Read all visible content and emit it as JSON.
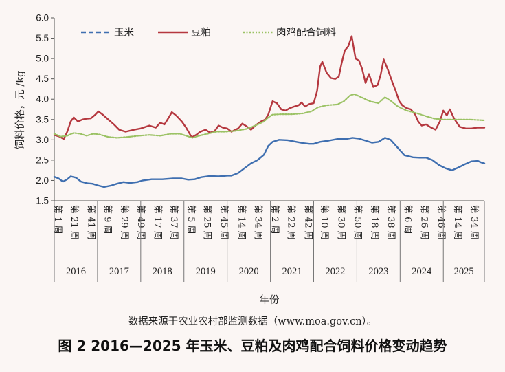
{
  "caption": "图 2 2016—2025 年玉米、豆粕及肉鸡配合饲料价格变动趋势",
  "source_note": "数据来源于农业农村部监测数据（www.moa.gov.cn）。",
  "colors": {
    "corn": "#3f6fb0",
    "soymeal": "#b5383f",
    "feed": "#9bc264"
  },
  "chart_data": {
    "type": "line",
    "title": "",
    "xlabel": "年份",
    "ylabel": "饲料价格，元 /kg",
    "ylim": [
      1.5,
      6.0
    ],
    "yticks": [
      "1.5",
      "2.0",
      "2.5",
      "3.0",
      "3.5",
      "4.0",
      "4.5",
      "5.0",
      "5.5",
      "6.0"
    ],
    "grid": false,
    "legend_position": "top",
    "years": [
      "2016",
      "2017",
      "2018",
      "2019",
      "2020",
      "2021",
      "2022",
      "2023",
      "2024",
      "2025"
    ],
    "week_ticks": [
      "第 1 周",
      "第 21 周",
      "第 41 周",
      "第 9 周",
      "第 29 周",
      "第 49 周",
      "第 17 周",
      "第 37 周",
      "第 5 周",
      "第 25 周",
      "第 45 周",
      "第 14 周",
      "第 34 周",
      "第 2 周",
      "第 22 周",
      "第 42 周",
      "第 10 周",
      "第 30 周",
      "第 50 周",
      "第 18 周",
      "第 38 周",
      "第 6 周",
      "第 26 周",
      "第 46 周",
      "第 14 周",
      "第 34 周"
    ],
    "week_tick_positions": [
      2016.0,
      2016.38,
      2016.77,
      2017.15,
      2017.54,
      2017.92,
      2018.31,
      2018.69,
      2019.08,
      2019.46,
      2019.85,
      2020.25,
      2020.63,
      2021.02,
      2021.4,
      2021.79,
      2022.17,
      2022.56,
      2022.94,
      2023.33,
      2023.71,
      2024.1,
      2024.48,
      2024.87,
      2025.25,
      2025.63
    ],
    "x_range": [
      2016.0,
      2025.95
    ],
    "series": [
      {
        "name": "玉米",
        "style": "dashed",
        "points": [
          [
            2016.0,
            2.09
          ],
          [
            2016.1,
            2.05
          ],
          [
            2016.2,
            1.97
          ],
          [
            2016.3,
            2.03
          ],
          [
            2016.38,
            2.1
          ],
          [
            2016.5,
            2.07
          ],
          [
            2016.62,
            1.97
          ],
          [
            2016.77,
            1.93
          ],
          [
            2016.88,
            1.92
          ],
          [
            2017.0,
            1.88
          ],
          [
            2017.15,
            1.84
          ],
          [
            2017.3,
            1.87
          ],
          [
            2017.45,
            1.92
          ],
          [
            2017.6,
            1.96
          ],
          [
            2017.75,
            1.94
          ],
          [
            2017.92,
            1.96
          ],
          [
            2018.05,
            2.0
          ],
          [
            2018.25,
            2.03
          ],
          [
            2018.5,
            2.03
          ],
          [
            2018.75,
            2.05
          ],
          [
            2018.95,
            2.05
          ],
          [
            2019.1,
            2.02
          ],
          [
            2019.25,
            2.03
          ],
          [
            2019.4,
            2.08
          ],
          [
            2019.6,
            2.11
          ],
          [
            2019.8,
            2.1
          ],
          [
            2020.0,
            2.12
          ],
          [
            2020.1,
            2.12
          ],
          [
            2020.25,
            2.18
          ],
          [
            2020.4,
            2.3
          ],
          [
            2020.55,
            2.42
          ],
          [
            2020.7,
            2.5
          ],
          [
            2020.85,
            2.63
          ],
          [
            2020.95,
            2.85
          ],
          [
            2021.05,
            2.95
          ],
          [
            2021.2,
            3.0
          ],
          [
            2021.4,
            2.99
          ],
          [
            2021.6,
            2.95
          ],
          [
            2021.75,
            2.92
          ],
          [
            2021.9,
            2.9
          ],
          [
            2022.0,
            2.9
          ],
          [
            2022.15,
            2.95
          ],
          [
            2022.35,
            2.98
          ],
          [
            2022.55,
            3.02
          ],
          [
            2022.75,
            3.02
          ],
          [
            2022.9,
            3.05
          ],
          [
            2023.05,
            3.03
          ],
          [
            2023.2,
            2.98
          ],
          [
            2023.35,
            2.93
          ],
          [
            2023.5,
            2.95
          ],
          [
            2023.65,
            3.05
          ],
          [
            2023.78,
            3.0
          ],
          [
            2023.95,
            2.8
          ],
          [
            2024.1,
            2.62
          ],
          [
            2024.3,
            2.57
          ],
          [
            2024.45,
            2.56
          ],
          [
            2024.6,
            2.56
          ],
          [
            2024.75,
            2.5
          ],
          [
            2024.9,
            2.38
          ],
          [
            2025.05,
            2.3
          ],
          [
            2025.2,
            2.25
          ],
          [
            2025.35,
            2.32
          ],
          [
            2025.5,
            2.4
          ],
          [
            2025.65,
            2.47
          ],
          [
            2025.8,
            2.48
          ],
          [
            2025.88,
            2.44
          ],
          [
            2025.95,
            2.42
          ]
        ]
      },
      {
        "name": "豆粕",
        "style": "solid",
        "points": [
          [
            2016.0,
            3.12
          ],
          [
            2016.12,
            3.08
          ],
          [
            2016.22,
            3.02
          ],
          [
            2016.3,
            3.2
          ],
          [
            2016.38,
            3.45
          ],
          [
            2016.45,
            3.55
          ],
          [
            2016.55,
            3.45
          ],
          [
            2016.65,
            3.5
          ],
          [
            2016.75,
            3.52
          ],
          [
            2016.85,
            3.53
          ],
          [
            2016.95,
            3.62
          ],
          [
            2017.02,
            3.7
          ],
          [
            2017.12,
            3.62
          ],
          [
            2017.25,
            3.5
          ],
          [
            2017.38,
            3.38
          ],
          [
            2017.5,
            3.25
          ],
          [
            2017.65,
            3.2
          ],
          [
            2017.85,
            3.25
          ],
          [
            2018.0,
            3.28
          ],
          [
            2018.2,
            3.35
          ],
          [
            2018.35,
            3.3
          ],
          [
            2018.45,
            3.42
          ],
          [
            2018.55,
            3.38
          ],
          [
            2018.65,
            3.55
          ],
          [
            2018.72,
            3.68
          ],
          [
            2018.82,
            3.6
          ],
          [
            2018.95,
            3.45
          ],
          [
            2019.05,
            3.3
          ],
          [
            2019.18,
            3.06
          ],
          [
            2019.28,
            3.12
          ],
          [
            2019.38,
            3.2
          ],
          [
            2019.5,
            3.25
          ],
          [
            2019.6,
            3.18
          ],
          [
            2019.7,
            3.2
          ],
          [
            2019.8,
            3.35
          ],
          [
            2019.9,
            3.3
          ],
          [
            2020.0,
            3.28
          ],
          [
            2020.1,
            3.2
          ],
          [
            2020.25,
            3.28
          ],
          [
            2020.35,
            3.4
          ],
          [
            2020.45,
            3.33
          ],
          [
            2020.55,
            3.25
          ],
          [
            2020.65,
            3.35
          ],
          [
            2020.78,
            3.45
          ],
          [
            2020.88,
            3.5
          ],
          [
            2020.95,
            3.62
          ],
          [
            2021.05,
            3.95
          ],
          [
            2021.15,
            3.9
          ],
          [
            2021.25,
            3.75
          ],
          [
            2021.35,
            3.72
          ],
          [
            2021.45,
            3.78
          ],
          [
            2021.55,
            3.82
          ],
          [
            2021.65,
            3.85
          ],
          [
            2021.72,
            3.92
          ],
          [
            2021.8,
            3.82
          ],
          [
            2021.9,
            3.88
          ],
          [
            2022.0,
            3.9
          ],
          [
            2022.08,
            4.2
          ],
          [
            2022.15,
            4.8
          ],
          [
            2022.2,
            4.92
          ],
          [
            2022.3,
            4.65
          ],
          [
            2022.4,
            4.52
          ],
          [
            2022.5,
            4.5
          ],
          [
            2022.58,
            4.55
          ],
          [
            2022.65,
            4.9
          ],
          [
            2022.72,
            5.2
          ],
          [
            2022.8,
            5.3
          ],
          [
            2022.88,
            5.55
          ],
          [
            2022.92,
            5.3
          ],
          [
            2022.97,
            5.0
          ],
          [
            2023.05,
            4.95
          ],
          [
            2023.12,
            4.75
          ],
          [
            2023.2,
            4.4
          ],
          [
            2023.28,
            4.62
          ],
          [
            2023.38,
            4.3
          ],
          [
            2023.48,
            4.35
          ],
          [
            2023.55,
            4.6
          ],
          [
            2023.62,
            4.98
          ],
          [
            2023.72,
            4.72
          ],
          [
            2023.82,
            4.42
          ],
          [
            2023.9,
            4.2
          ],
          [
            2023.98,
            3.95
          ],
          [
            2024.05,
            3.85
          ],
          [
            2024.15,
            3.78
          ],
          [
            2024.25,
            3.75
          ],
          [
            2024.35,
            3.62
          ],
          [
            2024.42,
            3.45
          ],
          [
            2024.5,
            3.35
          ],
          [
            2024.6,
            3.38
          ],
          [
            2024.72,
            3.3
          ],
          [
            2024.82,
            3.25
          ],
          [
            2024.92,
            3.45
          ],
          [
            2025.0,
            3.72
          ],
          [
            2025.08,
            3.6
          ],
          [
            2025.15,
            3.75
          ],
          [
            2025.25,
            3.52
          ],
          [
            2025.38,
            3.32
          ],
          [
            2025.52,
            3.28
          ],
          [
            2025.65,
            3.28
          ],
          [
            2025.78,
            3.3
          ],
          [
            2025.95,
            3.3
          ]
        ]
      },
      {
        "name": "肉鸡配合饲料",
        "style": "dotted",
        "points": [
          [
            2016.0,
            3.15
          ],
          [
            2016.15,
            3.08
          ],
          [
            2016.3,
            3.1
          ],
          [
            2016.45,
            3.17
          ],
          [
            2016.6,
            3.15
          ],
          [
            2016.75,
            3.1
          ],
          [
            2016.9,
            3.15
          ],
          [
            2017.05,
            3.13
          ],
          [
            2017.25,
            3.07
          ],
          [
            2017.45,
            3.05
          ],
          [
            2017.7,
            3.07
          ],
          [
            2017.95,
            3.1
          ],
          [
            2018.2,
            3.12
          ],
          [
            2018.45,
            3.1
          ],
          [
            2018.7,
            3.15
          ],
          [
            2018.9,
            3.15
          ],
          [
            2019.05,
            3.1
          ],
          [
            2019.2,
            3.05
          ],
          [
            2019.35,
            3.1
          ],
          [
            2019.55,
            3.15
          ],
          [
            2019.75,
            3.2
          ],
          [
            2019.95,
            3.2
          ],
          [
            2020.2,
            3.22
          ],
          [
            2020.45,
            3.27
          ],
          [
            2020.65,
            3.35
          ],
          [
            2020.85,
            3.45
          ],
          [
            2020.95,
            3.55
          ],
          [
            2021.05,
            3.62
          ],
          [
            2021.25,
            3.63
          ],
          [
            2021.5,
            3.63
          ],
          [
            2021.75,
            3.65
          ],
          [
            2021.95,
            3.7
          ],
          [
            2022.1,
            3.8
          ],
          [
            2022.3,
            3.85
          ],
          [
            2022.55,
            3.87
          ],
          [
            2022.7,
            3.95
          ],
          [
            2022.85,
            4.1
          ],
          [
            2022.95,
            4.12
          ],
          [
            2023.1,
            4.05
          ],
          [
            2023.3,
            3.95
          ],
          [
            2023.5,
            3.9
          ],
          [
            2023.65,
            4.05
          ],
          [
            2023.8,
            3.95
          ],
          [
            2023.95,
            3.82
          ],
          [
            2024.15,
            3.72
          ],
          [
            2024.4,
            3.65
          ],
          [
            2024.6,
            3.58
          ],
          [
            2024.8,
            3.52
          ],
          [
            2025.0,
            3.5
          ],
          [
            2025.3,
            3.5
          ],
          [
            2025.6,
            3.5
          ],
          [
            2025.95,
            3.48
          ]
        ]
      }
    ]
  }
}
